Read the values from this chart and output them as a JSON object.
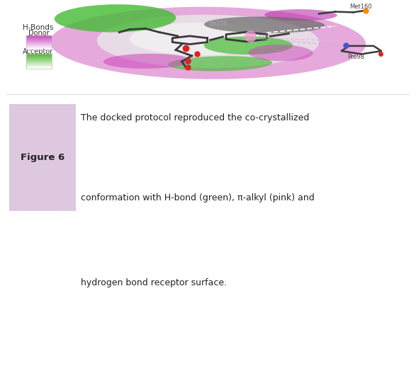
{
  "figure_label": "Figure 6",
  "figure_label_bg": "#ddc8e0",
  "caption_line1": "The docked protocol reproduced the co-crystallized",
  "caption_line2": "conformation with H-bond (green), π-alkyl (pink) and",
  "caption_line3": "hydrogen bond receptor surface.",
  "caption_fontsize": 9.0,
  "outer_border_color": "#cc88cc",
  "outer_bg": "#ffffff",
  "legend_title": "H-Bonds",
  "legend_donor": "Donor",
  "legend_acceptor": "Acceptor",
  "mol_dark_gray": "#3a3a3a",
  "mol_red": "#dd2222",
  "mol_orange": "#ff8800",
  "mol_blue": "#4455cc",
  "caption_split": 0.775
}
